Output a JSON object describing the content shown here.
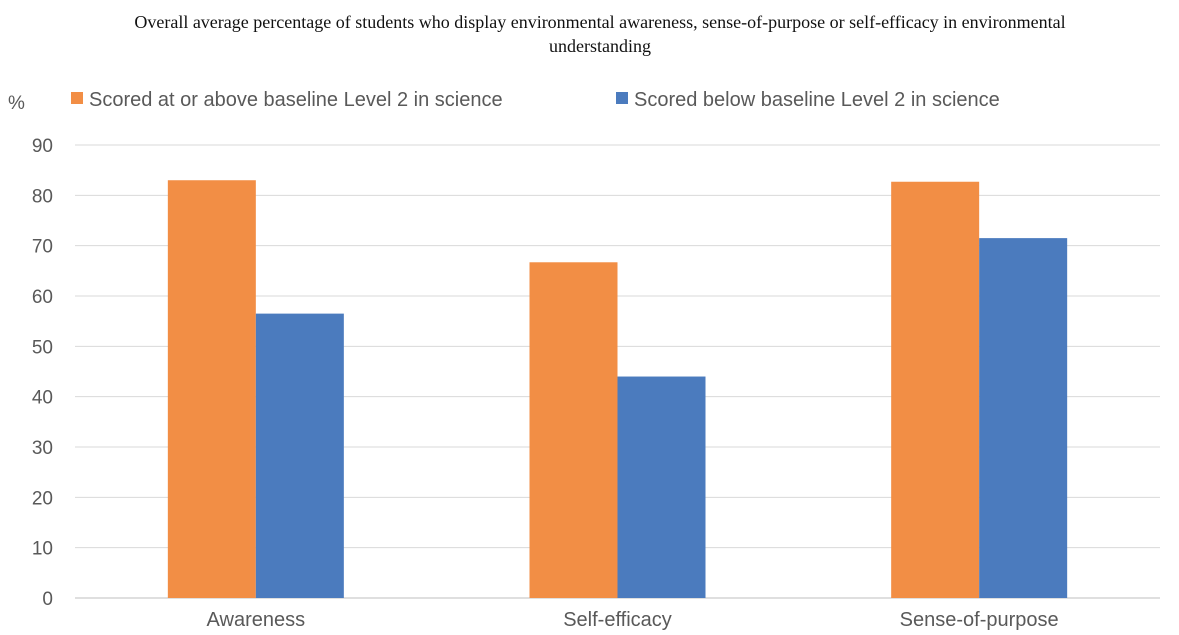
{
  "chart_data": {
    "type": "bar",
    "title": "Overall average percentage of students who display environmental awareness, sense-of-purpose or self-efficacy in environmental understanding",
    "ylabel": "%",
    "xlabel": "",
    "categories": [
      "Awareness",
      "Self-efficacy",
      "Sense-of-purpose"
    ],
    "series": [
      {
        "name": "Scored at or above baseline Level 2 in science",
        "color": "#F28E45",
        "values": [
          83,
          66.7,
          82.7
        ]
      },
      {
        "name": "Scored below baseline Level 2 in science",
        "color": "#4B7BBE",
        "values": [
          56.5,
          44,
          71.5
        ]
      }
    ],
    "ylim": [
      0,
      90
    ],
    "yticks": [
      0,
      10,
      20,
      30,
      40,
      50,
      60,
      70,
      80,
      90
    ],
    "grid": true,
    "legend": "top"
  }
}
